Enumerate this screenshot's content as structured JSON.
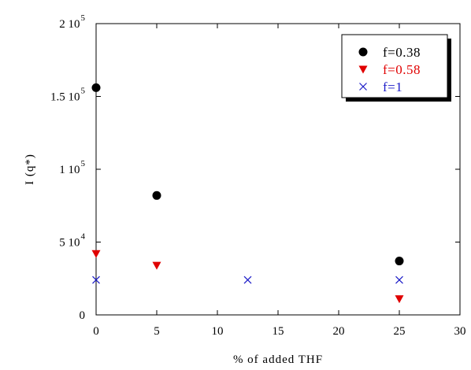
{
  "chart_data": {
    "type": "scatter",
    "xlabel": "% of added THF",
    "ylabel": "I (q*)",
    "xlim": [
      0,
      30
    ],
    "ylim": [
      0,
      200000
    ],
    "xticks": [
      0,
      5,
      10,
      15,
      20,
      25,
      30
    ],
    "x_tick_labels": [
      "0",
      "5",
      "10",
      "15",
      "20",
      "25",
      "30"
    ],
    "yticks": [
      {
        "value": 0,
        "mantissa": "0",
        "exp": ""
      },
      {
        "value": 50000,
        "mantissa": "5 10",
        "exp": "4"
      },
      {
        "value": 100000,
        "mantissa": "1 10",
        "exp": "5"
      },
      {
        "value": 150000,
        "mantissa": "1.5 10",
        "exp": "5"
      },
      {
        "value": 200000,
        "mantissa": "2 10",
        "exp": "5"
      }
    ],
    "grid": false,
    "legend_position": "top-right",
    "series": [
      {
        "name": "f=0.38",
        "marker": "circle",
        "color": "#000000",
        "points": [
          {
            "x": 0,
            "y": 156000
          },
          {
            "x": 5,
            "y": 82000
          },
          {
            "x": 25,
            "y": 37000
          }
        ]
      },
      {
        "name": "f=0.58",
        "marker": "triangle-down",
        "color": "#e00000",
        "points": [
          {
            "x": 0,
            "y": 42000
          },
          {
            "x": 5,
            "y": 34000
          },
          {
            "x": 25,
            "y": 11000
          }
        ]
      },
      {
        "name": "f=1",
        "marker": "x",
        "color": "#1c1cc8",
        "points": [
          {
            "x": 0,
            "y": 24000
          },
          {
            "x": 12.5,
            "y": 24000
          },
          {
            "x": 25,
            "y": 24000
          }
        ]
      }
    ]
  }
}
